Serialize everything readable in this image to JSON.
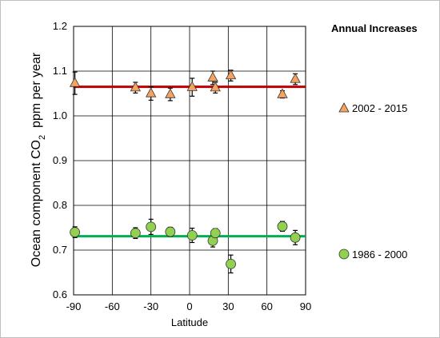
{
  "chart_data": {
    "type": "scatter",
    "title": "",
    "xlabel": "Latitude",
    "ylabel": {
      "prefix": "Ocean component CO",
      "subscript": "2",
      "suffix": "  ppm per year"
    },
    "xlim": [
      -90,
      90
    ],
    "ylim": [
      0.6,
      1.2
    ],
    "x_ticks": [
      -90,
      -60,
      -30,
      0,
      30,
      60,
      90
    ],
    "y_ticks": [
      0.6,
      0.7,
      0.8,
      0.9,
      1.0,
      1.1,
      1.2
    ],
    "y_tick_labels": [
      "0.6",
      "0.7",
      "0.8",
      "0.9",
      "1.0",
      "1.1",
      "1.2"
    ],
    "grid": true,
    "legend": {
      "title": "Annual Increases",
      "placement": "right"
    },
    "series": [
      {
        "name": "2002 - 2015",
        "marker": "triangle",
        "color": "#F4A460",
        "edge_color": "#333333",
        "trend_value": 1.065,
        "trend_color": "#C00000",
        "points": [
          {
            "x": -89,
            "y": 1.073,
            "err": 0.025
          },
          {
            "x": -42,
            "y": 1.063,
            "err": 0.012
          },
          {
            "x": -30,
            "y": 1.05,
            "err": 0.015
          },
          {
            "x": -15,
            "y": 1.048,
            "err": 0.014
          },
          {
            "x": 2,
            "y": 1.064,
            "err": 0.02
          },
          {
            "x": 18,
            "y": 1.085,
            "err": 0.015
          },
          {
            "x": 20,
            "y": 1.063,
            "err": 0.012
          },
          {
            "x": 32,
            "y": 1.09,
            "err": 0.012
          },
          {
            "x": 72,
            "y": 1.048,
            "err": 0.008
          },
          {
            "x": 82,
            "y": 1.082,
            "err": 0.012
          }
        ]
      },
      {
        "name": "1986 - 2000",
        "marker": "circle",
        "color": "#92D050",
        "edge_color": "#333333",
        "trend_value": 0.731,
        "trend_color": "#00B050",
        "points": [
          {
            "x": -89,
            "y": 0.74,
            "err": 0.012
          },
          {
            "x": -42,
            "y": 0.738,
            "err": 0.012
          },
          {
            "x": -30,
            "y": 0.752,
            "err": 0.017
          },
          {
            "x": -15,
            "y": 0.741,
            "err": 0.01
          },
          {
            "x": 2,
            "y": 0.733,
            "err": 0.016
          },
          {
            "x": 18,
            "y": 0.721,
            "err": 0.014
          },
          {
            "x": 20,
            "y": 0.738,
            "err": 0.01
          },
          {
            "x": 32,
            "y": 0.669,
            "err": 0.02
          },
          {
            "x": 72,
            "y": 0.753,
            "err": 0.011
          },
          {
            "x": 82,
            "y": 0.728,
            "err": 0.016
          }
        ]
      }
    ]
  }
}
